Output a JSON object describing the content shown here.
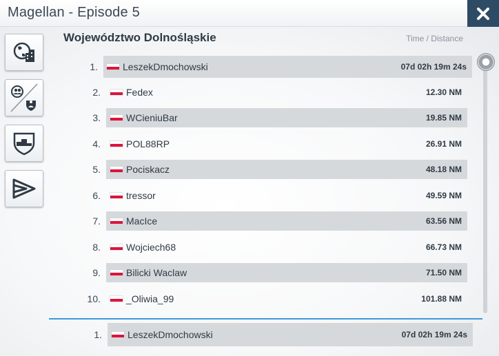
{
  "window": {
    "title": "Magellan - Episode 5"
  },
  "sidebar": {
    "items": [
      {
        "name": "world-ranking"
      },
      {
        "name": "friends-vs-team"
      },
      {
        "name": "group-ranking"
      },
      {
        "name": "flag-ranking"
      }
    ]
  },
  "leaderboard": {
    "region_title": "Województwo Dolnośląskie",
    "column_header": "Time / Distance",
    "rows": [
      {
        "rank": "1.",
        "name": "LeszekDmochowski",
        "value": "07d 02h 19m 24s"
      },
      {
        "rank": "2.",
        "name": "Fedex",
        "value": "12.30 NM"
      },
      {
        "rank": "3.",
        "name": "WCieniuBar",
        "value": "19.85 NM"
      },
      {
        "rank": "4.",
        "name": "POL88RP",
        "value": "26.91 NM"
      },
      {
        "rank": "5.",
        "name": "Pociskacz",
        "value": "48.18 NM"
      },
      {
        "rank": "6.",
        "name": "tressor",
        "value": "49.59 NM"
      },
      {
        "rank": "7.",
        "name": "MacIce",
        "value": "63.56 NM"
      },
      {
        "rank": "8.",
        "name": "Wojciech68",
        "value": "66.73 NM"
      },
      {
        "rank": "9.",
        "name": "Bilicki Waclaw",
        "value": "71.50 NM"
      },
      {
        "rank": "10.",
        "name": "_Oliwia_99",
        "value": "101.88 NM"
      }
    ],
    "current_player": {
      "rank": "1.",
      "name": "LeszekDmochowski",
      "value": "07d 02h 19m 24s"
    }
  },
  "colors": {
    "accent": "#3a9ad9",
    "close_button": "#2e4b66",
    "row_shade": "#d6d9dc",
    "flag_red": "#dc143c"
  }
}
